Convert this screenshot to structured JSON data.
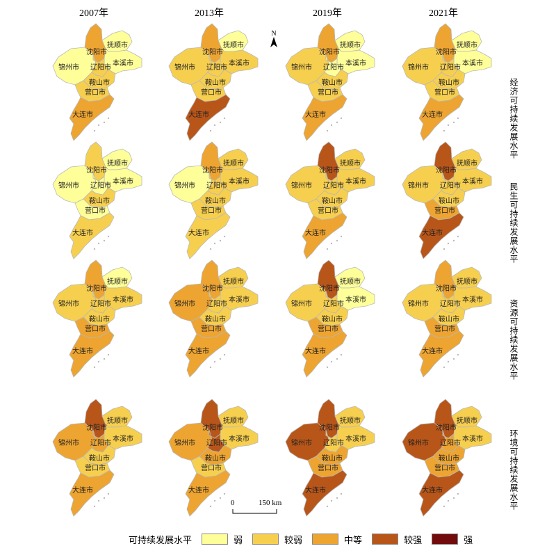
{
  "years": [
    "2007年",
    "2013年",
    "2019年",
    "2021年"
  ],
  "rows": [
    "经济可持续发展水平",
    "民生可持续发展水平",
    "资源可持续发展水平",
    "环境可持续发展水平"
  ],
  "cities": [
    "沈阳市",
    "抚顺市",
    "锦州市",
    "辽阳市",
    "本溪市",
    "鞍山市",
    "营口市",
    "大连市"
  ],
  "north_label": "N",
  "scale": {
    "zero": "0",
    "value": "150 km"
  },
  "legend": {
    "title": "可持续发展水平",
    "classes": [
      {
        "label": "弱",
        "color": "#ffff99"
      },
      {
        "label": "较弱",
        "color": "#f7cf4f"
      },
      {
        "label": "中等",
        "color": "#eda431"
      },
      {
        "label": "较强",
        "color": "#b8561a"
      },
      {
        "label": "强",
        "color": "#720b0b"
      }
    ]
  },
  "levels": {
    "经济可持续发展水平": {
      "2007年": {
        "沈阳市": "中等",
        "抚顺市": "弱",
        "锦州市": "弱",
        "辽阳市": "较弱",
        "本溪市": "弱",
        "鞍山市": "较弱",
        "营口市": "较弱",
        "大连市": "中等"
      },
      "2013年": {
        "沈阳市": "中等",
        "抚顺市": "弱",
        "锦州市": "较弱",
        "辽阳市": "较弱",
        "本溪市": "较弱",
        "鞍山市": "较弱",
        "营口市": "较弱",
        "大连市": "较强"
      },
      "2019年": {
        "沈阳市": "中等",
        "抚顺市": "弱",
        "锦州市": "较弱",
        "辽阳市": "弱",
        "本溪市": "弱",
        "鞍山市": "较弱",
        "营口市": "较弱",
        "大连市": "中等"
      },
      "2021年": {
        "沈阳市": "中等",
        "抚顺市": "弱",
        "锦州市": "较弱",
        "辽阳市": "较弱",
        "本溪市": "弱",
        "鞍山市": "较弱",
        "营口市": "较弱",
        "大连市": "中等"
      }
    },
    "民生可持续发展水平": {
      "2007年": {
        "沈阳市": "较弱",
        "抚顺市": "弱",
        "锦州市": "弱",
        "辽阳市": "弱",
        "本溪市": "弱",
        "鞍山市": "较弱",
        "营口市": "弱",
        "大连市": "较弱"
      },
      "2013年": {
        "沈阳市": "中等",
        "抚顺市": "较弱",
        "锦州市": "弱",
        "辽阳市": "较弱",
        "本溪市": "较弱",
        "鞍山市": "较弱",
        "营口市": "较弱",
        "大连市": "较弱"
      },
      "2019年": {
        "沈阳市": "较强",
        "抚顺市": "较弱",
        "锦州市": "较弱",
        "辽阳市": "较弱",
        "本溪市": "较弱",
        "鞍山市": "较弱",
        "营口市": "较弱",
        "大连市": "中等"
      },
      "2021年": {
        "沈阳市": "较强",
        "抚顺市": "较弱",
        "锦州市": "较弱",
        "辽阳市": "较弱",
        "本溪市": "较弱",
        "鞍山市": "较弱",
        "营口市": "中等",
        "大连市": "较强"
      }
    },
    "资源可持续发展水平": {
      "2007年": {
        "沈阳市": "中等",
        "抚顺市": "弱",
        "锦州市": "较弱",
        "辽阳市": "较弱",
        "本溪市": "较弱",
        "鞍山市": "较弱",
        "营口市": "中等",
        "大连市": "中等"
      },
      "2013年": {
        "沈阳市": "中等",
        "抚顺市": "较弱",
        "锦州市": "中等",
        "辽阳市": "较弱",
        "本溪市": "较弱",
        "鞍山市": "较弱",
        "营口市": "中等",
        "大连市": "中等"
      },
      "2019年": {
        "沈阳市": "较强",
        "抚顺市": "弱",
        "锦州市": "较弱",
        "辽阳市": "较弱",
        "本溪市": "弱",
        "鞍山市": "较弱",
        "营口市": "中等",
        "大连市": "中等"
      },
      "2021年": {
        "沈阳市": "中等",
        "抚顺市": "较弱",
        "锦州市": "较弱",
        "辽阳市": "较弱",
        "本溪市": "较弱",
        "鞍山市": "较弱",
        "营口市": "中等",
        "大连市": "中等"
      }
    },
    "环境可持续发展水平": {
      "2007年": {
        "沈阳市": "较强",
        "抚顺市": "较弱",
        "锦州市": "中等",
        "辽阳市": "中等",
        "本溪市": "较弱",
        "鞍山市": "较弱",
        "营口市": "较弱",
        "大连市": "中等"
      },
      "2013年": {
        "沈阳市": "较强",
        "抚顺市": "较弱",
        "锦州市": "中等",
        "辽阳市": "较强",
        "本溪市": "较弱",
        "鞍山市": "中等",
        "营口市": "较弱",
        "大连市": "中等"
      },
      "2019年": {
        "沈阳市": "较强",
        "抚顺市": "较弱",
        "锦州市": "较强",
        "辽阳市": "较弱",
        "本溪市": "较弱",
        "鞍山市": "中等",
        "营口市": "中等",
        "大连市": "较强"
      },
      "2021年": {
        "沈阳市": "较强",
        "抚顺市": "较弱",
        "锦州市": "较强",
        "辽阳市": "中等",
        "本溪市": "较弱",
        "鞍山市": "中等",
        "营口市": "中等",
        "大连市": "较强"
      }
    }
  }
}
